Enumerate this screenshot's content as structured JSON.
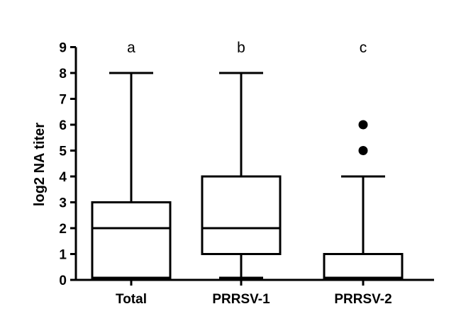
{
  "chart_data": {
    "type": "box",
    "ylabel": "log2 NA titer",
    "xlabel": "",
    "ylim": [
      0,
      9
    ],
    "yticks": [
      "0",
      "1",
      "2",
      "3",
      "4",
      "5",
      "6",
      "7",
      "8",
      "9"
    ],
    "grid": false,
    "legend": "none",
    "categories": [
      "Total",
      "PRRSV-1",
      "PRRSV-2"
    ],
    "letters": [
      "a",
      "b",
      "c"
    ],
    "boxes": [
      {
        "min": 0,
        "q1": 0,
        "median": 2,
        "q3": 3,
        "max": 8,
        "outliers": []
      },
      {
        "min": 0,
        "q1": 1,
        "median": 2,
        "q3": 4,
        "max": 8,
        "outliers": []
      },
      {
        "min": 0,
        "q1": 0,
        "median": 0,
        "q3": 1,
        "max": 4,
        "outliers": [
          5,
          6
        ]
      }
    ],
    "colors": {
      "stroke": "#000000",
      "fill": "#ffffff"
    }
  }
}
